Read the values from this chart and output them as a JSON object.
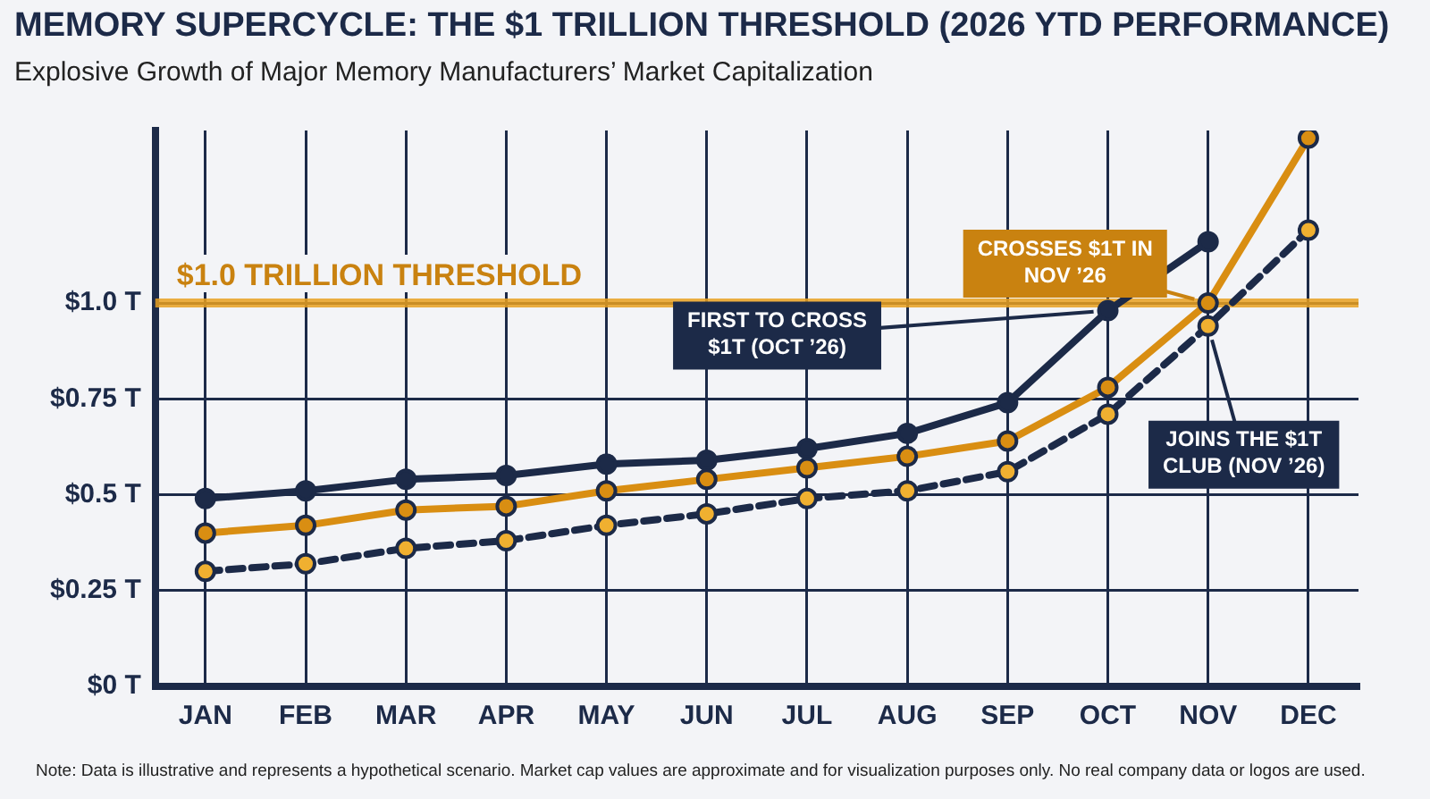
{
  "chart_data": {
    "type": "line",
    "title": "MEMORY SUPERCYCLE: THE $1 TRILLION THRESHOLD (2026 YTD PERFORMANCE)",
    "subtitle": "Explosive Growth of Major Memory Manufacturers’ Market Capitalization",
    "categories": [
      "JAN",
      "FEB",
      "MAR",
      "APR",
      "MAY",
      "JUN",
      "JUL",
      "AUG",
      "SEP",
      "OCT",
      "NOV",
      "DEC"
    ],
    "series": [
      {
        "color": "#d98e12",
        "values": [
          0.4,
          0.42,
          0.46,
          0.47,
          0.51,
          0.54,
          0.57,
          0.6,
          0.64,
          0.78,
          1.0,
          1.43
        ]
      },
      {
        "color": "#1c2a48",
        "values": [
          0.49,
          0.51,
          0.54,
          0.55,
          0.58,
          0.59,
          0.62,
          0.66,
          0.74,
          0.98,
          1.16,
          null
        ]
      },
      {
        "color": "#1c2a48",
        "line_style": "dashed",
        "values": [
          0.3,
          0.32,
          0.36,
          0.38,
          0.42,
          0.45,
          0.49,
          0.51,
          0.56,
          0.71,
          0.94,
          1.19
        ]
      }
    ],
    "ylim": [
      0,
      1.45
    ],
    "yticks": [
      {
        "value": 0,
        "label": "$0 T"
      },
      {
        "value": 0.25,
        "label": "$0.25 T"
      },
      {
        "value": 0.5,
        "label": "$0.5 T"
      },
      {
        "value": 0.75,
        "label": "$0.75 T"
      },
      {
        "value": 1.0,
        "label": "$1.0 T"
      }
    ],
    "grid": true,
    "marker": "circle",
    "ref_lines": [
      {
        "axis": "y",
        "value": 1.0,
        "label": "$1.0 TRILLION THRESHOLD",
        "color": "#e8a020"
      }
    ],
    "annotations": [
      {
        "text": "CROSSES $1T IN NOV ’26",
        "x": "NOV",
        "y": 1.0
      },
      {
        "text": "FIRST TO CROSS $1T (OCT ’26)",
        "x": "OCT",
        "y": 0.98
      },
      {
        "text": "JOINS THE $1T CLUB (NOV ’26)",
        "x": "NOV",
        "y": 0.94
      },
      "Note: Data is illustrative and represents a hypothetical scenario. Market cap values are approximate and for visualization purposes only. No real company data or logos are used."
    ]
  }
}
